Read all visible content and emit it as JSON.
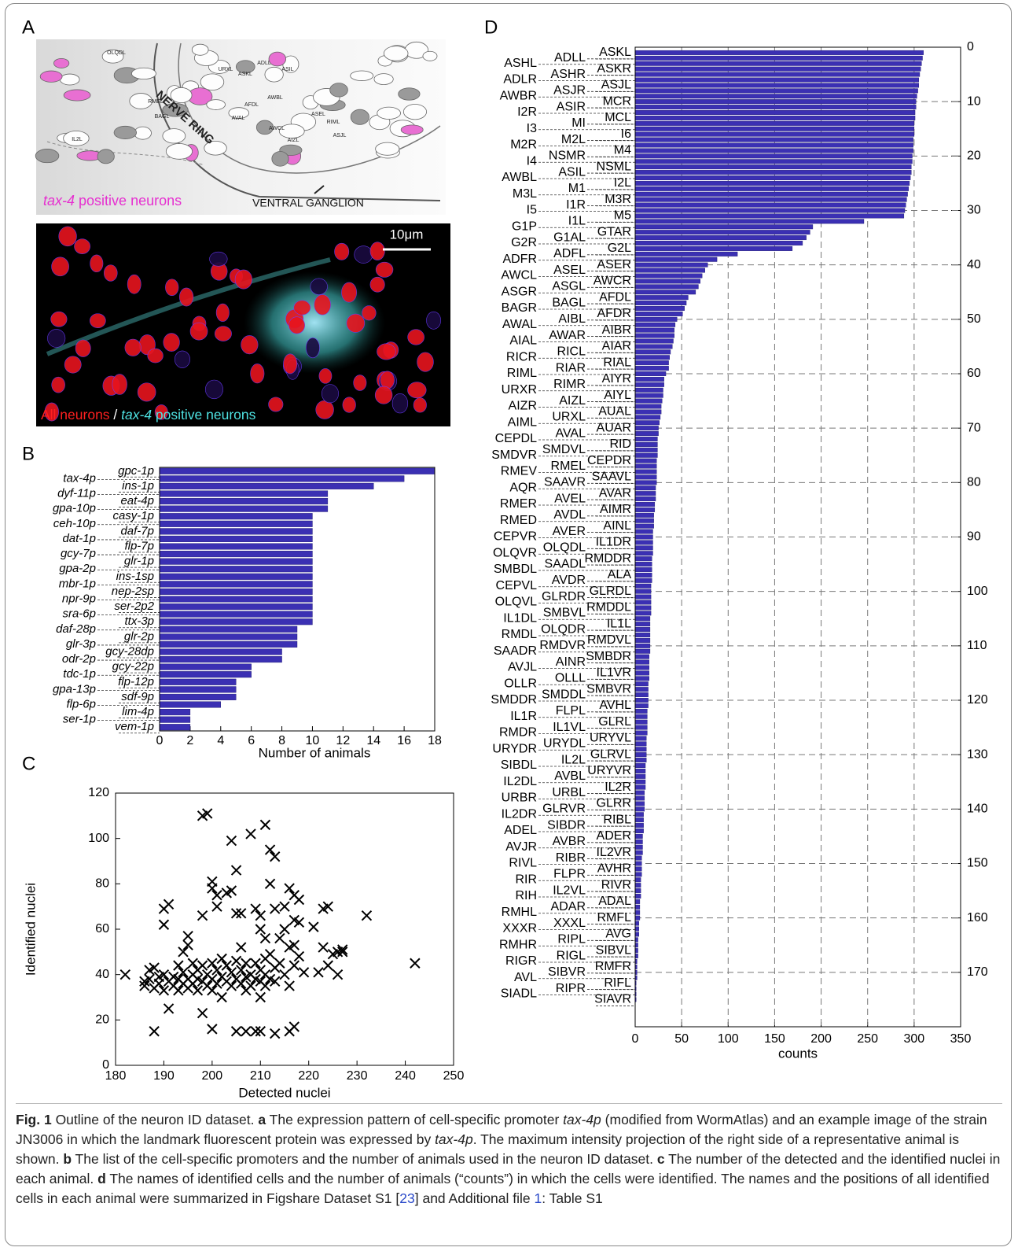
{
  "panel_labels": [
    "A",
    "B",
    "C",
    "D"
  ],
  "panel_a": {
    "diagram_labels": [
      "ASKL",
      "ADLL",
      "ASIL",
      "AWBL",
      "AFDL",
      "AWCL",
      "ASEL",
      "ASJL",
      "BAGL",
      "RMEL",
      "URXL",
      "AVAL",
      "RIML",
      "AIZL",
      "OLQDL",
      "IL2L"
    ],
    "nerve_ring": "NERVE RING",
    "ventral_ganglion": "VENTRAL GANGLION",
    "diagram_caption": [
      "tax-4",
      " positive neurons"
    ],
    "scale_bar": "10μm",
    "image_caption": [
      "All neurons",
      " / ",
      "tax-4",
      " positive neurons"
    ]
  },
  "chart_data": [
    {
      "type": "bar",
      "orientation": "horizontal",
      "categories": [
        "gpc-1p",
        "tax-4p",
        "ins-1p",
        "dyf-11p",
        "eat-4p",
        "gpa-10p",
        "casy-1p",
        "ceh-10p",
        "daf-7p",
        "dat-1p",
        "flp-7p",
        "gcy-7p",
        "glr-1p",
        "gpa-2p",
        "ins-1sp",
        "mbr-1p",
        "nep-2sp",
        "npr-9p",
        "ser-2p2",
        "sra-6p",
        "ttx-3p",
        "daf-28p",
        "glr-2p",
        "glr-3p",
        "gcy-28dp",
        "odr-2p",
        "gcy-22p",
        "tdc-1p",
        "flp-12p",
        "gpa-13p",
        "sdf-9p",
        "flp-6p",
        "lim-4p",
        "ser-1p",
        "vem-1p"
      ],
      "values": [
        18,
        16,
        14,
        11,
        11,
        11,
        10,
        10,
        10,
        10,
        10,
        10,
        10,
        10,
        10,
        10,
        10,
        10,
        10,
        10,
        10,
        9,
        9,
        9,
        8,
        8,
        6,
        6,
        5,
        5,
        5,
        4,
        2,
        2,
        2
      ],
      "color": "#3b30b3",
      "xlim": [
        0,
        18
      ],
      "xticks": [
        0,
        2,
        4,
        6,
        8,
        10,
        12,
        14,
        16,
        18
      ],
      "xlabel": "Number of animals",
      "grid": false
    },
    {
      "type": "scatter",
      "x": [
        182,
        186,
        186,
        187,
        187,
        188,
        188,
        188,
        189,
        189,
        190,
        190,
        191,
        191,
        190,
        190,
        191,
        192,
        192,
        193,
        193,
        193,
        194,
        194,
        194,
        195,
        195,
        195,
        195,
        196,
        196,
        196,
        197,
        197,
        197,
        198,
        198,
        198,
        198,
        198,
        199,
        199,
        199,
        200,
        200,
        200,
        200,
        200,
        200,
        201,
        201,
        201,
        201,
        202,
        202,
        202,
        203,
        203,
        203,
        204,
        204,
        204,
        204,
        205,
        205,
        205,
        205,
        205,
        206,
        206,
        206,
        206,
        207,
        207,
        207,
        207,
        208,
        208,
        208,
        209,
        209,
        209,
        209,
        210,
        210,
        210,
        210,
        210,
        210,
        211,
        211,
        211,
        211,
        211,
        212,
        212,
        212,
        212,
        213,
        213,
        213,
        213,
        213,
        214,
        214,
        215,
        215,
        215,
        216,
        216,
        216,
        216,
        217,
        217,
        217,
        217,
        217,
        218,
        218,
        218,
        219,
        221,
        222,
        223,
        223,
        224,
        224,
        225,
        226,
        226,
        227,
        227,
        232,
        242
      ],
      "y": [
        40,
        37,
        35,
        38,
        42,
        15,
        43,
        34,
        39,
        36,
        62,
        69,
        71,
        25,
        40,
        33,
        37,
        39,
        35,
        44,
        38,
        33,
        50,
        41,
        36,
        57,
        53,
        38,
        34,
        45,
        40,
        36,
        42,
        38,
        33,
        110,
        66,
        23,
        44,
        37,
        111,
        40,
        35,
        16,
        81,
        78,
        45,
        38,
        33,
        75,
        70,
        42,
        36,
        47,
        39,
        30,
        76,
        44,
        37,
        77,
        99,
        41,
        35,
        86,
        67,
        15,
        46,
        38,
        67,
        52,
        42,
        36,
        15,
        45,
        39,
        33,
        102,
        40,
        35,
        15,
        69,
        45,
        38,
        15,
        66,
        60,
        30,
        42,
        37,
        106,
        56,
        47,
        40,
        35,
        95,
        80,
        49,
        38,
        92,
        14,
        69,
        43,
        37,
        56,
        45,
        70,
        60,
        40,
        78,
        15,
        52,
        35,
        64,
        17,
        53,
        75,
        44,
        73,
        48,
        63,
        41,
        61,
        41,
        52,
        69,
        70,
        44,
        49,
        40,
        50,
        50,
        51,
        66,
        45
      ],
      "color": "#000000",
      "marker": "x",
      "xlim": [
        180,
        250
      ],
      "xticks": [
        180,
        190,
        200,
        210,
        220,
        230,
        240,
        250
      ],
      "ylim": [
        0,
        120
      ],
      "yticks": [
        0,
        20,
        40,
        60,
        80,
        100,
        120
      ],
      "xlabel": "Detected nuclei",
      "ylabel": "Identified nuclei",
      "grid": false
    },
    {
      "type": "bar",
      "orientation": "horizontal",
      "categories": [
        "ASKL",
        "ADLL",
        "ASHL",
        "ASKR",
        "ASHR",
        "ADLR",
        "ASJL",
        "ASJR",
        "AWBR",
        "MCR",
        "ASIR",
        "I2R",
        "MCL",
        "MI",
        "I3",
        "I6",
        "M2L",
        "M2R",
        "M4",
        "NSMR",
        "I4",
        "NSML",
        "ASIL",
        "AWBL",
        "I2L",
        "M1",
        "M3L",
        "M3R",
        "I1R",
        "I5",
        "M5",
        "I1L",
        "G1P",
        "GTAR",
        "G1AL",
        "G2R",
        "G2L",
        "ADFL",
        "ADFR",
        "ASER",
        "ASEL",
        "AWCL",
        "AWCR",
        "ASGL",
        "ASGR",
        "AFDL",
        "BAGL",
        "BAGR",
        "AFDR",
        "AIBL",
        "AWAL",
        "AIBR",
        "AWAR",
        "AIAL",
        "AIAR",
        "RICL",
        "RICR",
        "RIAL",
        "RIAR",
        "RIML",
        "AIYR",
        "RIMR",
        "URXR",
        "AIYL",
        "AIZL",
        "AIZR",
        "AUAL",
        "URXL",
        "AIML",
        "AUAR",
        "AVAL",
        "CEPDL",
        "RID",
        "SMDVL",
        "SMDVR",
        "CEPDR",
        "RMEL",
        "RMEV",
        "SAAVL",
        "SAAVR",
        "AQR",
        "AVAR",
        "AVEL",
        "RMER",
        "AIMR",
        "AVDL",
        "RMED",
        "AINL",
        "AVER",
        "CEPVR",
        "IL1DR",
        "OLQDL",
        "OLQVR",
        "RMDDR",
        "SAADL",
        "SMBDL",
        "ALA",
        "AVDR",
        "CEPVL",
        "GLRDL",
        "GLRDR",
        "OLQVL",
        "RMDDL",
        "SMBVL",
        "IL1DL",
        "IL1L",
        "OLQDR",
        "RMDL",
        "RMDVL",
        "RMDVR",
        "SAADR",
        "SMBDR",
        "AINR",
        "AVJL",
        "IL1VR",
        "OLLL",
        "OLLR",
        "SMBVR",
        "SMDDL",
        "SMDDR",
        "AVHL",
        "FLPL",
        "IL1R",
        "GLRL",
        "IL1VL",
        "RMDR",
        "URYVL",
        "URYDL",
        "URYDR",
        "GLRVL",
        "IL2L",
        "SIBDL",
        "URYVR",
        "AVBL",
        "IL2DL",
        "IL2R",
        "URBL",
        "URBR",
        "GLRR",
        "GLRVR",
        "IL2DR",
        "RIBL",
        "SIBDR",
        "ADEL",
        "ADER",
        "AVBR",
        "AVJR",
        "IL2VR",
        "RIBR",
        "RIVL",
        "AVHR",
        "FLPR",
        "RIR",
        "RIVR",
        "IL2VL",
        "RIH",
        "ADAL",
        "ADAR",
        "RMHL",
        "RMFL",
        "XXXL",
        "XXXR",
        "AVG",
        "RIPL",
        "RMHR",
        "SIBVL",
        "RIGL",
        "RIGR",
        "RMFR",
        "SIBVR",
        "AVL",
        "RIFL",
        "RIPR",
        "SIADL",
        "SIAVR"
      ],
      "values": [
        310,
        309,
        308,
        307,
        306,
        305,
        305,
        304,
        303,
        302,
        302,
        301,
        301,
        300,
        300,
        300,
        299,
        299,
        299,
        298,
        298,
        297,
        297,
        296,
        295,
        294,
        293,
        292,
        291,
        290,
        289,
        246,
        191,
        188,
        184,
        180,
        169,
        110,
        88,
        78,
        75,
        72,
        70,
        68,
        65,
        57,
        55,
        53,
        51,
        45,
        43,
        42,
        42,
        41,
        40,
        38,
        37,
        36,
        36,
        33,
        31,
        31,
        30,
        30,
        29,
        28,
        28,
        27,
        26,
        25,
        25,
        24,
        24,
        24,
        24,
        23,
        23,
        23,
        23,
        23,
        22,
        22,
        22,
        21,
        21,
        20,
        20,
        20,
        19,
        19,
        19,
        19,
        19,
        18,
        18,
        18,
        18,
        18,
        17,
        17,
        17,
        17,
        17,
        17,
        16,
        16,
        16,
        16,
        16,
        16,
        16,
        15,
        15,
        15,
        15,
        15,
        14,
        14,
        14,
        14,
        14,
        13,
        13,
        13,
        13,
        13,
        12,
        12,
        12,
        12,
        12,
        11,
        11,
        11,
        11,
        11,
        10,
        10,
        10,
        10,
        9,
        9,
        9,
        9,
        8,
        8,
        8,
        8,
        7,
        7,
        7,
        7,
        6,
        6,
        6,
        6,
        5,
        5,
        5,
        5,
        4,
        4,
        4,
        3,
        3,
        3,
        3,
        2,
        2,
        2,
        2,
        1,
        1,
        1,
        1
      ],
      "color": "#3b30b3",
      "xlim": [
        0,
        350
      ],
      "xticks": [
        0,
        50,
        100,
        150,
        200,
        250,
        300,
        350
      ],
      "ylim": [
        0,
        180
      ],
      "yticks": [
        0,
        10,
        20,
        30,
        40,
        50,
        60,
        70,
        80,
        90,
        100,
        110,
        120,
        130,
        140,
        150,
        160,
        170
      ],
      "xlabel": "counts",
      "grid": true
    }
  ],
  "caption": [
    "Fig. 1",
    " Outline of the neuron ID dataset. ",
    "a",
    " The expression pattern of cell-specific promoter ",
    "tax-4p",
    " (modified from WormAtlas) and an example image of the strain JN3006 in which the landmark fluorescent protein was expressed by ",
    "tax-4p",
    ". The maximum intensity projection of the right side of a representative animal is shown. ",
    "b",
    " The list of the cell-specific promoters and the number of animals used in the neuron ID dataset. ",
    "c",
    " The number of the detected and the identified nuclei in each animal. ",
    "d",
    " The names of identified cells and the number of animals (“counts”) in which the cells were identified. The names and the positions of all identified cells in each animal were summarized in Figshare Dataset S1 [",
    "23",
    "] and Additional file ",
    "1",
    ": Table S1"
  ]
}
